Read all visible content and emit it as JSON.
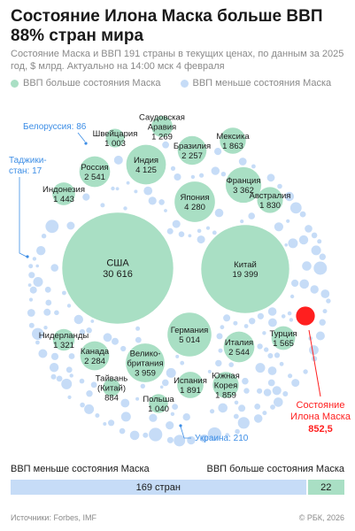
{
  "title": "Состояние Илона Маска больше ВВП 88% стран мира",
  "subtitle": "Состояние Маска и ВВП 191 страны в текущих ценах, по данным за 2025 год, $ млрд. Актуально на 14:00 мск 4 февраля",
  "legend": {
    "greater": "ВВП больше состояния Маска",
    "less": "ВВП меньше состояния Маска"
  },
  "colors": {
    "greater": "#a9dfc4",
    "less": "#c6dcf7",
    "musk": "#ff1f1f",
    "accent_blue": "#3d8ee6"
  },
  "chart_data": {
    "type": "bubble",
    "unit": "$ млрд",
    "musk": {
      "name": "Состояние Илона Маска",
      "value": 852.5
    },
    "countries_greater": [
      {
        "name": "США",
        "value": 30616
      },
      {
        "name": "Китай",
        "value": 19399
      },
      {
        "name": "Германия",
        "value": 5014
      },
      {
        "name": "Япония",
        "value": 4280
      },
      {
        "name": "Индия",
        "value": 4125
      },
      {
        "name": "Великобритания",
        "value": 3959
      },
      {
        "name": "Франция",
        "value": 3362
      },
      {
        "name": "Италия",
        "value": 2544
      },
      {
        "name": "Россия",
        "value": 2541
      },
      {
        "name": "Канада",
        "value": 2284
      },
      {
        "name": "Бразилия",
        "value": 2257
      },
      {
        "name": "Испания",
        "value": 1891
      },
      {
        "name": "Мексика",
        "value": 1863
      },
      {
        "name": "Южная Корея",
        "value": 1859
      },
      {
        "name": "Австралия",
        "value": 1830
      },
      {
        "name": "Турция",
        "value": 1565
      },
      {
        "name": "Индонезия",
        "value": 1443
      },
      {
        "name": "Нидерланды",
        "value": 1321
      },
      {
        "name": "Саудовская Аравия",
        "value": 1269
      },
      {
        "name": "Польша",
        "value": 1040
      },
      {
        "name": "Швейцария",
        "value": 1003
      },
      {
        "name": "Тайвань (Китай)",
        "value": 884
      }
    ],
    "countries_less_labeled": [
      {
        "name": "Белоруссия",
        "value": 86
      },
      {
        "name": "Таджикистан",
        "value": 17
      },
      {
        "name": "Украина",
        "value": 210
      }
    ],
    "bubble_labels": {
      "США": [
        "США",
        "30 616"
      ],
      "Китай": [
        "Китай",
        "19 399"
      ],
      "Германия": [
        "Германия",
        "5 014"
      ],
      "Япония": [
        "Япония",
        "4 280"
      ],
      "Индия": [
        "Индия",
        "4 125"
      ],
      "Великобритания": [
        "Велико-",
        "британия",
        "3 959"
      ],
      "Франция": [
        "Франция",
        "3 362"
      ],
      "Италия": [
        "Италия",
        "2 544"
      ],
      "Россия": [
        "Россия",
        "2 541"
      ],
      "Канада": [
        "Канада",
        "2 284"
      ],
      "Бразилия": [
        "Бразилия",
        "2 257"
      ],
      "Испания": [
        "Испания",
        "1 891"
      ],
      "Мексика": [
        "Мексика",
        "1 863"
      ],
      "Южная Корея": [
        "Южная",
        "Корея",
        "1 859"
      ],
      "Австралия": [
        "Австралия",
        "1 830"
      ],
      "Турция": [
        "Турция",
        "1 565"
      ],
      "Индонезия": [
        "Индонезия",
        "1 443"
      ],
      "Нидерланды": [
        "Нидерланды",
        "1 321"
      ],
      "Саудовская Аравия": [
        "Саудовская",
        "Аравия",
        "1 269"
      ],
      "Польша": [
        "Польша",
        "1 040"
      ],
      "Швейцария": [
        "Швейцария",
        "1 003"
      ],
      "Тайвань (Китай)": [
        "Тайвань",
        "(Китай)",
        "884"
      ]
    },
    "callouts": {
      "belarus": "Белоруссия: 86",
      "tajik_1": "Таджики-",
      "tajik_2": "стан: 17",
      "ukraine": "Украина: 210",
      "musk_1": "Состояние",
      "musk_2": "Илона Маска",
      "musk_3": "852,5"
    },
    "summary": {
      "less_count": 169,
      "greater_count": 22
    }
  },
  "bar": {
    "left_label": "ВВП меньше состояния Маска",
    "right_label": "ВВП больше состояния Маска",
    "less_text": "169 стран",
    "greater_text": "22"
  },
  "footer": {
    "source": "Источники: Forbes, IMF",
    "copyright": "© РБК, 2026"
  }
}
